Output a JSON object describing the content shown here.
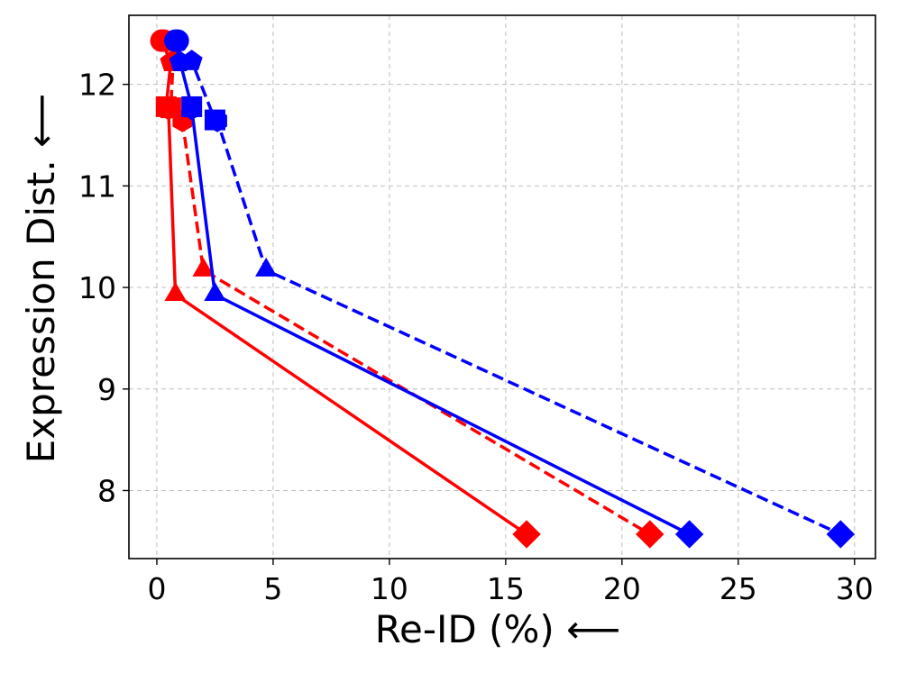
{
  "chart_data": {
    "type": "line",
    "title": "",
    "xlabel": "Re-ID (%) ⟵",
    "ylabel": "Expression Dist. ⟵",
    "xlim": [
      -1.2,
      30.9
    ],
    "ylim": [
      7.33,
      12.68
    ],
    "grid": true,
    "x_ticks": [
      0,
      5,
      10,
      15,
      20,
      25,
      30
    ],
    "y_ticks": [
      8,
      9,
      10,
      11,
      12
    ],
    "x_tick_labels": [
      "0",
      "5",
      "10",
      "15",
      "20",
      "25",
      "30"
    ],
    "y_tick_labels": [
      "8",
      "9",
      "10",
      "11",
      "12"
    ],
    "marker_sequence": [
      "circle",
      "pentagon",
      "square",
      "hexagon",
      "triangle",
      "diamond"
    ],
    "series": [
      {
        "name": "red-solid",
        "color": "#ff0000",
        "linestyle": "solid",
        "points": [
          {
            "x": 0.2,
            "y": 12.43
          },
          {
            "x": 0.6,
            "y": 12.22
          },
          {
            "x": 0.4,
            "y": 11.78
          },
          {
            "x": 0.5,
            "y": 11.76
          },
          {
            "x": 0.8,
            "y": 9.93
          },
          {
            "x": 15.9,
            "y": 7.57
          }
        ]
      },
      {
        "name": "red-dashed",
        "color": "#ff0000",
        "linestyle": "dashed",
        "points": [
          {
            "x": 0.3,
            "y": 12.43
          },
          {
            "x": 0.7,
            "y": 12.23
          },
          {
            "x": 0.6,
            "y": 11.77
          },
          {
            "x": 1.1,
            "y": 11.64
          },
          {
            "x": 2.0,
            "y": 10.17
          },
          {
            "x": 21.2,
            "y": 7.57
          }
        ]
      },
      {
        "name": "blue-solid",
        "color": "#0000ff",
        "linestyle": "solid",
        "points": [
          {
            "x": 0.8,
            "y": 12.43
          },
          {
            "x": 1.0,
            "y": 12.22
          },
          {
            "x": 1.5,
            "y": 11.78
          },
          {
            "x": 1.5,
            "y": 11.76
          },
          {
            "x": 2.5,
            "y": 9.93
          },
          {
            "x": 22.9,
            "y": 7.57
          }
        ]
      },
      {
        "name": "blue-dashed",
        "color": "#0000ff",
        "linestyle": "dashed",
        "points": [
          {
            "x": 0.9,
            "y": 12.43
          },
          {
            "x": 1.5,
            "y": 12.23
          },
          {
            "x": 2.5,
            "y": 11.65
          },
          {
            "x": 2.6,
            "y": 11.64
          },
          {
            "x": 4.7,
            "y": 10.17
          },
          {
            "x": 29.4,
            "y": 7.57
          }
        ]
      }
    ]
  }
}
